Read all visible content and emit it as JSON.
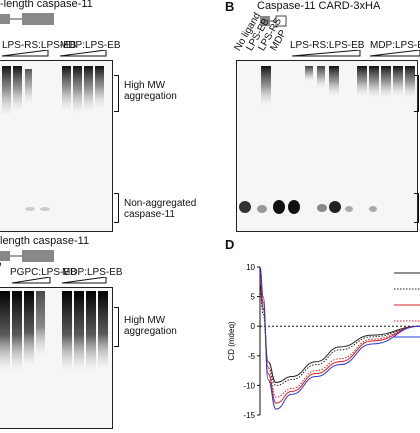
{
  "panelA": {
    "title": "-length caspase-11",
    "groups": [
      "LPS-RS:LPS-EB",
      "MDP:LPS-EB"
    ],
    "labels": {
      "high": "High MW\naggregation",
      "non": "Non-aggregated\ncaspase-11"
    }
  },
  "panelB": {
    "letter": "B",
    "title": "Caspase-11 CARD-3xHA",
    "lane_labels": [
      "No ligand",
      "LPS-EB",
      "LPS-RS",
      "MDP"
    ],
    "groups": [
      "LPS-RS:LPS-EB",
      "MDP:LPS-EB"
    ]
  },
  "panelC": {
    "title": "length caspase-11",
    "prefix": "PS",
    "groups": [
      "PGPC:LPS-EB",
      "MDP:LPS-EB"
    ],
    "labels": {
      "high": "High MW\naggregation"
    }
  },
  "panelD": {
    "letter": "D",
    "chart_data": {
      "type": "line",
      "ylabel": "CD (mdeq)",
      "ylim": [
        -15,
        10
      ],
      "yticks": [
        10,
        5,
        0,
        -5,
        -10,
        -15
      ],
      "series": [
        {
          "color": "#222222",
          "style": "solid",
          "values": [
            [
              0,
              7
            ],
            [
              0.02,
              3
            ],
            [
              0.05,
              -6
            ],
            [
              0.1,
              -9.5
            ],
            [
              0.2,
              -8.5
            ],
            [
              0.35,
              -6
            ],
            [
              0.5,
              -3.5
            ],
            [
              0.7,
              -1.5
            ],
            [
              1,
              0
            ]
          ]
        },
        {
          "color": "#222222",
          "style": "dotted",
          "values": [
            [
              0,
              6
            ],
            [
              0.02,
              2
            ],
            [
              0.05,
              -7
            ],
            [
              0.1,
              -10
            ],
            [
              0.2,
              -9
            ],
            [
              0.35,
              -6.5
            ],
            [
              0.5,
              -4
            ],
            [
              0.7,
              -1.8
            ],
            [
              1,
              0
            ]
          ]
        },
        {
          "color": "#d62020",
          "style": "solid",
          "values": [
            [
              0,
              9
            ],
            [
              0.02,
              4
            ],
            [
              0.05,
              -8
            ],
            [
              0.1,
              -13
            ],
            [
              0.2,
              -11
            ],
            [
              0.35,
              -8
            ],
            [
              0.5,
              -6
            ],
            [
              0.7,
              -2.5
            ],
            [
              1,
              0
            ]
          ]
        },
        {
          "color": "#d62020",
          "style": "dotted",
          "values": [
            [
              0,
              8
            ],
            [
              0.02,
              3
            ],
            [
              0.05,
              -7
            ],
            [
              0.1,
              -12
            ],
            [
              0.2,
              -10.5
            ],
            [
              0.35,
              -7.5
            ],
            [
              0.5,
              -5.5
            ],
            [
              0.7,
              -2.2
            ],
            [
              1,
              0
            ]
          ]
        },
        {
          "color": "#2a3bd8",
          "style": "solid",
          "values": [
            [
              0,
              10
            ],
            [
              0.02,
              5
            ],
            [
              0.05,
              -9
            ],
            [
              0.1,
              -14
            ],
            [
              0.2,
              -11.5
            ],
            [
              0.35,
              -8.5
            ],
            [
              0.5,
              -6.5
            ],
            [
              0.7,
              -3
            ],
            [
              1,
              0
            ]
          ]
        }
      ]
    }
  }
}
